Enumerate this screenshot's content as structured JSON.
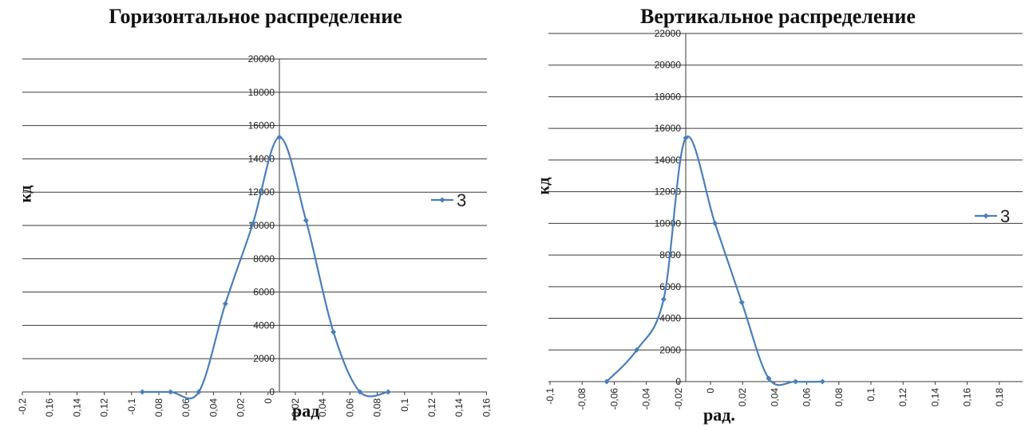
{
  "chart_data": [
    {
      "type": "line",
      "title": "Горизонтальное распределение",
      "ylabel": "кд",
      "xlabel": "рад",
      "ylim": [
        0,
        20000
      ],
      "y_ticks": [
        0,
        2000,
        4000,
        6000,
        8000,
        10000,
        12000,
        14000,
        16000,
        18000,
        20000
      ],
      "y_tick_labels": [
        "0",
        "2000",
        "4000",
        "6000",
        "8000",
        "10000",
        "12000",
        "14000",
        "16000",
        "18000",
        "20000"
      ],
      "x_tick_labels": [
        "-0,2",
        "0,16",
        "0,14",
        "0,12",
        "-0,1",
        "0,08",
        "0,06",
        "0,04",
        "0,02",
        "0",
        "0,02",
        "0,04",
        "0,06",
        "0,08",
        "0,1",
        "0,12",
        "0,14",
        "0,16"
      ],
      "grid": true,
      "legend": "right",
      "series": [
        {
          "name": "3",
          "color": "#4a7ebb",
          "x": [
            -0.17,
            -0.135,
            -0.1,
            -0.067,
            -0.033,
            0,
            0.033,
            0.067,
            0.1,
            0.135
          ],
          "y": [
            0,
            0,
            0,
            5300,
            10100,
            15300,
            10300,
            3600,
            0,
            0
          ]
        }
      ]
    },
    {
      "type": "line",
      "title": "Вертикальное распределение",
      "ylabel": "кд",
      "xlabel": "рад.",
      "ylim": [
        0,
        22000
      ],
      "y_ticks": [
        0,
        2000,
        4000,
        6000,
        8000,
        10000,
        12000,
        14000,
        16000,
        18000,
        20000,
        22000
      ],
      "y_tick_labels": [
        "0",
        "2000",
        "4000",
        "6000",
        "8000",
        "10000",
        "12000",
        "14000",
        "16000",
        "18000",
        "20000",
        "22000"
      ],
      "x_tick_labels": [
        "-0,1",
        "-0,08",
        "-0,06",
        "-0,04",
        "-0,02",
        "0",
        "0,02",
        "0,04",
        "0,06",
        "0,08",
        "0,1",
        "0,12",
        "0,14",
        "0,16",
        "0,18"
      ],
      "grid": true,
      "legend": "right",
      "series": [
        {
          "name": "3",
          "color": "#4a7ebb",
          "x": [
            -0.1,
            -0.062,
            -0.028,
            0,
            0.037,
            0.071,
            0.105,
            0.139,
            0.173
          ],
          "y": [
            0,
            2000,
            5200,
            15400,
            10000,
            5000,
            200,
            0,
            0
          ]
        }
      ]
    }
  ]
}
